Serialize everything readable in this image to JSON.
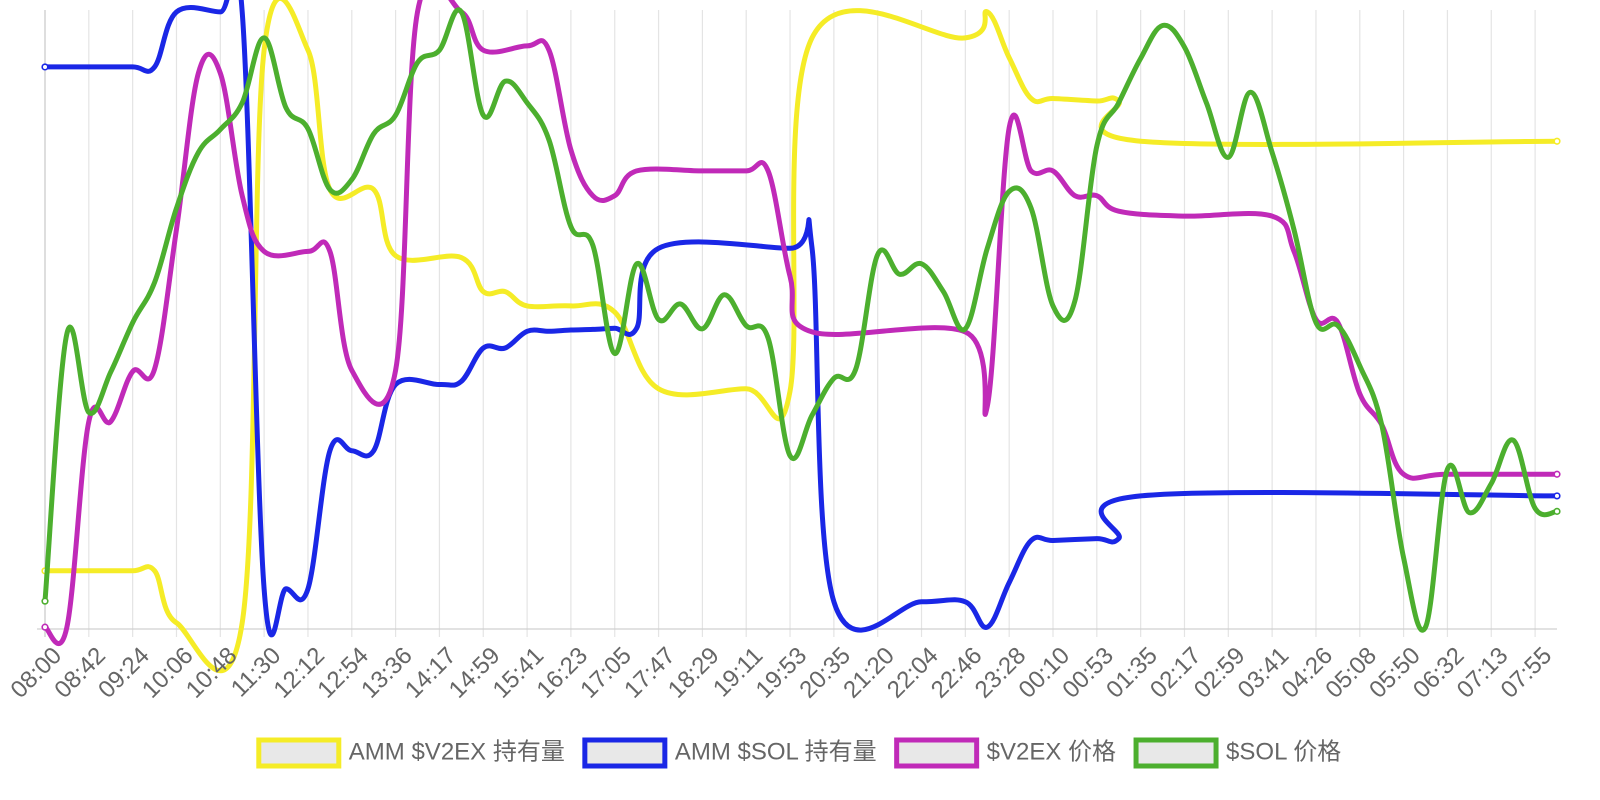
{
  "chart_data": {
    "type": "line",
    "title": "",
    "xlabel": "",
    "ylabel": "",
    "grid": true,
    "legend_position": "bottom",
    "x_ticks": [
      "08:00",
      "08:42",
      "09:24",
      "10:06",
      "10:48",
      "11:30",
      "12:12",
      "12:54",
      "13:36",
      "14:17",
      "14:59",
      "15:41",
      "16:23",
      "17:05",
      "17:47",
      "18:29",
      "19:11",
      "19:53",
      "20:35",
      "21:20",
      "22:04",
      "22:46",
      "23:28",
      "00:10",
      "00:53",
      "01:35",
      "02:17",
      "02:59",
      "03:41",
      "04:26",
      "05:08",
      "05:50",
      "06:32",
      "07:13",
      "07:55"
    ],
    "series": [
      {
        "name": "AMM $V2EX 持有量",
        "color": "#f5ec27",
        "points": [
          [
            0,
            0.906
          ],
          [
            1,
            0.906
          ],
          [
            2,
            0.906
          ],
          [
            2.5,
            0.906
          ],
          [
            3,
            0.99
          ],
          [
            4.5,
            0.99
          ],
          [
            5,
            0.065
          ],
          [
            6,
            0.065
          ],
          [
            6.5,
            0.29
          ],
          [
            7.5,
            0.29
          ],
          [
            8,
            0.397
          ],
          [
            9.5,
            0.4
          ],
          [
            10,
            0.455
          ],
          [
            10.5,
            0.455
          ],
          [
            11,
            0.478
          ],
          [
            12,
            0.478
          ],
          [
            13,
            0.488
          ],
          [
            14,
            0.612
          ],
          [
            16,
            0.612
          ],
          [
            17,
            0.616
          ],
          [
            17.5,
            0.045
          ],
          [
            21,
            0.045
          ],
          [
            21.5,
            0.003
          ],
          [
            22,
            0.077
          ],
          [
            22.5,
            0.143
          ],
          [
            23,
            0.143
          ],
          [
            24,
            0.147
          ],
          [
            24.5,
            0.147
          ],
          [
            25,
            0.212
          ],
          [
            34.5,
            0.212
          ]
        ]
      },
      {
        "name": "AMM $SOL 持有量",
        "color": "#1a27e6",
        "points": [
          [
            0,
            0.092
          ],
          [
            1,
            0.092
          ],
          [
            2,
            0.092
          ],
          [
            2.5,
            0.092
          ],
          [
            3,
            0.003
          ],
          [
            4,
            0.003
          ],
          [
            4.5,
            0.003
          ],
          [
            5,
            0.935
          ],
          [
            5.5,
            0.935
          ],
          [
            6,
            0.935
          ],
          [
            6.5,
            0.712
          ],
          [
            7,
            0.712
          ],
          [
            7.5,
            0.712
          ],
          [
            8,
            0.605
          ],
          [
            9,
            0.605
          ],
          [
            9.5,
            0.6
          ],
          [
            10,
            0.546
          ],
          [
            10.5,
            0.546
          ],
          [
            11,
            0.519
          ],
          [
            11.5,
            0.519
          ],
          [
            12,
            0.517
          ],
          [
            12.5,
            0.516
          ],
          [
            13,
            0.514
          ],
          [
            13.5,
            0.514
          ],
          [
            14,
            0.385
          ],
          [
            17,
            0.385
          ],
          [
            17.5,
            0.384
          ],
          [
            18,
            0.956
          ],
          [
            20,
            0.956
          ],
          [
            21,
            0.956
          ],
          [
            21.5,
            0.997
          ],
          [
            22,
            0.925
          ],
          [
            22.5,
            0.857
          ],
          [
            23,
            0.857
          ],
          [
            24,
            0.854
          ],
          [
            24.5,
            0.854
          ],
          [
            25,
            0.785
          ],
          [
            34.5,
            0.785
          ]
        ]
      },
      {
        "name": "$V2EX 价格",
        "color": "#c02ab8",
        "points": [
          [
            0,
            0.997
          ],
          [
            0.5,
            0.997
          ],
          [
            1,
            0.665
          ],
          [
            1.5,
            0.665
          ],
          [
            2,
            0.584
          ],
          [
            2.5,
            0.58
          ],
          [
            3,
            0.354
          ],
          [
            3.5,
            0.102
          ],
          [
            4,
            0.102
          ],
          [
            4.5,
            0.3
          ],
          [
            5,
            0.39
          ],
          [
            6,
            0.39
          ],
          [
            6.5,
            0.39
          ],
          [
            7,
            0.582
          ],
          [
            8,
            0.582
          ],
          [
            8.5,
            0.003
          ],
          [
            9.5,
            0.003
          ],
          [
            10,
            0.065
          ],
          [
            11,
            0.058
          ],
          [
            11.5,
            0.065
          ],
          [
            12,
            0.226
          ],
          [
            12.5,
            0.3
          ],
          [
            13,
            0.3
          ],
          [
            13.5,
            0.26
          ],
          [
            15,
            0.26
          ],
          [
            16,
            0.26
          ],
          [
            16.5,
            0.26
          ],
          [
            17,
            0.43
          ],
          [
            17.5,
            0.52
          ],
          [
            21,
            0.52
          ],
          [
            21.5,
            0.64
          ],
          [
            22,
            0.19
          ],
          [
            22.5,
            0.26
          ],
          [
            23,
            0.26
          ],
          [
            23.5,
            0.3
          ],
          [
            24,
            0.3
          ],
          [
            24.5,
            0.325
          ],
          [
            26,
            0.333
          ],
          [
            28,
            0.333
          ],
          [
            28.5,
            0.39
          ],
          [
            29,
            0.5
          ],
          [
            29.5,
            0.505
          ],
          [
            30,
            0.62
          ],
          [
            30.5,
            0.67
          ],
          [
            31,
            0.75
          ],
          [
            32,
            0.75
          ],
          [
            34.5,
            0.75
          ]
        ]
      },
      {
        "name": "$SOL 价格",
        "color": "#4caf2e",
        "points": [
          [
            0,
            0.955
          ],
          [
            0.5,
            0.523
          ],
          [
            1,
            0.65
          ],
          [
            1.5,
            0.585
          ],
          [
            2,
            0.505
          ],
          [
            2.5,
            0.44
          ],
          [
            3,
            0.32
          ],
          [
            3.5,
            0.23
          ],
          [
            4,
            0.193
          ],
          [
            4.5,
            0.15
          ],
          [
            5,
            0.045
          ],
          [
            5.5,
            0.158
          ],
          [
            6,
            0.192
          ],
          [
            6.5,
            0.29
          ],
          [
            7,
            0.274
          ],
          [
            7.5,
            0.2
          ],
          [
            8,
            0.17
          ],
          [
            8.5,
            0.085
          ],
          [
            9,
            0.065
          ],
          [
            9.5,
            0.003
          ],
          [
            10,
            0.17
          ],
          [
            10.5,
            0.115
          ],
          [
            11,
            0.15
          ],
          [
            11.5,
            0.21
          ],
          [
            12,
            0.35
          ],
          [
            12.5,
            0.38
          ],
          [
            13,
            0.555
          ],
          [
            13.5,
            0.41
          ],
          [
            14,
            0.5
          ],
          [
            14.5,
            0.475
          ],
          [
            15,
            0.515
          ],
          [
            15.5,
            0.46
          ],
          [
            16,
            0.51
          ],
          [
            16.5,
            0.53
          ],
          [
            17,
            0.72
          ],
          [
            17.5,
            0.655
          ],
          [
            18,
            0.595
          ],
          [
            18.5,
            0.58
          ],
          [
            19,
            0.395
          ],
          [
            19.5,
            0.427
          ],
          [
            20,
            0.41
          ],
          [
            20.5,
            0.455
          ],
          [
            21,
            0.515
          ],
          [
            21.5,
            0.385
          ],
          [
            22,
            0.293
          ],
          [
            22.5,
            0.32
          ],
          [
            23,
            0.478
          ],
          [
            23.5,
            0.47
          ],
          [
            24,
            0.22
          ],
          [
            24.5,
            0.15
          ],
          [
            25,
            0.078
          ],
          [
            25.5,
            0.025
          ],
          [
            26,
            0.06
          ],
          [
            26.5,
            0.15
          ],
          [
            27,
            0.238
          ],
          [
            27.5,
            0.133
          ],
          [
            28,
            0.23
          ],
          [
            28.5,
            0.355
          ],
          [
            29,
            0.505
          ],
          [
            29.5,
            0.51
          ],
          [
            30,
            0.575
          ],
          [
            30.5,
            0.67
          ],
          [
            31,
            0.885
          ],
          [
            31.5,
            0.997
          ],
          [
            32,
            0.742
          ],
          [
            32.5,
            0.812
          ],
          [
            33,
            0.765
          ],
          [
            33.5,
            0.695
          ],
          [
            34,
            0.805
          ],
          [
            34.5,
            0.81
          ]
        ]
      }
    ]
  }
}
